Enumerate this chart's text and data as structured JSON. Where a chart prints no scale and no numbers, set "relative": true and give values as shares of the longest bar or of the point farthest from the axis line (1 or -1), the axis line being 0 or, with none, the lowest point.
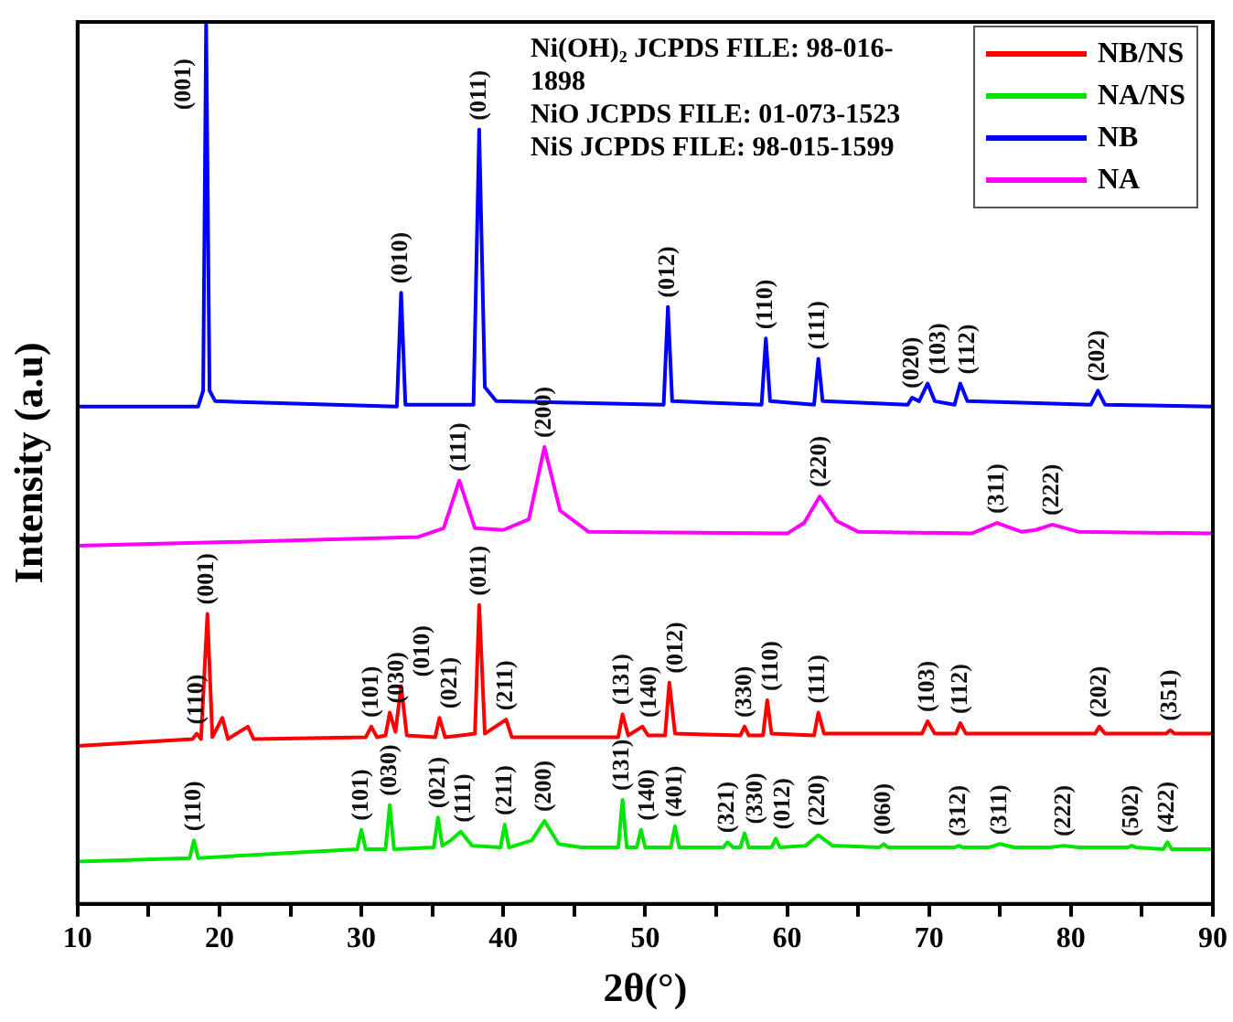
{
  "chart_data": {
    "type": "line",
    "relative": true,
    "xlabel": "2θ(°)",
    "ylabel": "Intensity (a.u)",
    "legend": "top right",
    "tick_labels": "x",
    "xlim": [
      10,
      90
    ],
    "xticks": [
      10,
      {
        "value": 15,
        "label": null
      },
      20,
      {
        "value": 25,
        "label": null
      },
      30,
      {
        "value": 35,
        "label": null
      },
      40,
      {
        "value": 45,
        "label": null
      },
      50,
      {
        "value": 55,
        "label": null
      },
      60,
      {
        "value": 65,
        "label": null
      },
      70,
      {
        "value": 75,
        "label": null
      },
      80,
      {
        "value": 85,
        "label": null
      },
      90
    ],
    "series": [
      {
        "name": "NB/NS",
        "color": "#ff0000",
        "x": [
          10,
          18.1,
          18.4,
          18.7,
          19.15,
          19.5,
          20.2,
          20.6,
          22.0,
          22.4,
          30.3,
          30.7,
          31.1,
          31.7,
          32.0,
          32.4,
          32.8,
          33.2,
          35.2,
          35.5,
          35.9,
          38.0,
          38.3,
          38.7,
          40.2,
          40.6,
          48.1,
          48.4,
          48.8,
          49.8,
          50.2,
          51.4,
          51.7,
          52.1,
          56.7,
          57.0,
          57.3,
          58.3,
          58.6,
          58.9,
          61.9,
          62.2,
          62.6,
          69.5,
          69.9,
          70.4,
          71.9,
          72.2,
          72.6,
          81.7,
          82.0,
          82.4,
          86.7,
          87.0,
          87.3,
          90
        ],
        "values": [
          0.179,
          0.187,
          0.193,
          0.187,
          0.329,
          0.189,
          0.211,
          0.187,
          0.201,
          0.187,
          0.189,
          0.201,
          0.189,
          0.191,
          0.217,
          0.195,
          0.247,
          0.191,
          0.189,
          0.211,
          0.189,
          0.193,
          0.339,
          0.193,
          0.209,
          0.189,
          0.189,
          0.215,
          0.191,
          0.201,
          0.191,
          0.191,
          0.251,
          0.193,
          0.191,
          0.201,
          0.191,
          0.191,
          0.231,
          0.193,
          0.191,
          0.217,
          0.193,
          0.193,
          0.207,
          0.193,
          0.193,
          0.205,
          0.193,
          0.193,
          0.201,
          0.193,
          0.193,
          0.197,
          0.193,
          0.193
        ]
      },
      {
        "name": "NA/NS",
        "color": "#00e600",
        "x": [
          10,
          17.9,
          18.2,
          18.5,
          29.7,
          30.0,
          30.3,
          31.7,
          32.0,
          32.3,
          35.1,
          35.4,
          35.7,
          36.3,
          37.0,
          37.8,
          39.8,
          40.1,
          40.4,
          42.0,
          42.9,
          43.9,
          45.5,
          48.1,
          48.4,
          48.7,
          49.4,
          49.7,
          50.0,
          51.8,
          52.1,
          52.4,
          55.5,
          55.8,
          56.2,
          56.7,
          57.0,
          57.3,
          58.9,
          59.2,
          59.5,
          61.3,
          62.2,
          63.2,
          66.5,
          66.8,
          67.1,
          71.8,
          72.1,
          72.4,
          74.2,
          75.0,
          76.0,
          78.5,
          79.5,
          80.5,
          84.0,
          84.3,
          84.6,
          86.5,
          86.8,
          87.1,
          90
        ],
        "values": [
          0.048,
          0.052,
          0.072,
          0.052,
          0.062,
          0.084,
          0.062,
          0.062,
          0.112,
          0.062,
          0.064,
          0.098,
          0.066,
          0.072,
          0.082,
          0.066,
          0.064,
          0.09,
          0.064,
          0.072,
          0.094,
          0.068,
          0.064,
          0.064,
          0.118,
          0.064,
          0.064,
          0.084,
          0.064,
          0.064,
          0.088,
          0.064,
          0.064,
          0.07,
          0.064,
          0.064,
          0.08,
          0.064,
          0.064,
          0.074,
          0.064,
          0.066,
          0.078,
          0.066,
          0.064,
          0.068,
          0.064,
          0.064,
          0.066,
          0.064,
          0.064,
          0.068,
          0.064,
          0.064,
          0.066,
          0.064,
          0.064,
          0.066,
          0.064,
          0.062,
          0.07,
          0.062,
          0.062
        ]
      },
      {
        "name": "NB",
        "color": "#0000ff",
        "x": [
          10,
          18.5,
          18.85,
          19.06,
          19.3,
          19.7,
          32.5,
          32.8,
          33.1,
          37.9,
          38.3,
          38.7,
          39.5,
          51.3,
          51.6,
          51.9,
          58.2,
          58.5,
          58.8,
          61.9,
          62.2,
          62.5,
          68.5,
          68.8,
          69.3,
          69.9,
          70.4,
          71.8,
          72.2,
          72.7,
          81.4,
          81.9,
          82.4,
          90
        ],
        "values": [
          0.564,
          0.564,
          0.582,
          1.0,
          0.582,
          0.57,
          0.564,
          0.693,
          0.566,
          0.566,
          0.878,
          0.586,
          0.57,
          0.566,
          0.677,
          0.57,
          0.566,
          0.641,
          0.57,
          0.566,
          0.618,
          0.57,
          0.566,
          0.574,
          0.57,
          0.59,
          0.57,
          0.566,
          0.59,
          0.57,
          0.566,
          0.582,
          0.566,
          0.564
        ]
      },
      {
        "name": "NA",
        "color": "#ff00ff",
        "x": [
          10,
          25,
          34,
          35.8,
          36.9,
          38,
          40,
          41.8,
          42.9,
          44,
          46,
          60,
          61.2,
          62.3,
          63.5,
          65,
          73,
          74.8,
          76.5,
          77.5,
          78.7,
          80.5,
          90
        ],
        "values": [
          0.406,
          0.412,
          0.416,
          0.426,
          0.48,
          0.426,
          0.424,
          0.436,
          0.518,
          0.446,
          0.422,
          0.42,
          0.432,
          0.462,
          0.434,
          0.422,
          0.42,
          0.432,
          0.422,
          0.424,
          0.43,
          0.422,
          0.42
        ]
      }
    ],
    "annotations": [
      "Ni(OH)₂ JCPDS FILE: 98-016-1898",
      "NiO JCPDS FILE: 01-073-1523",
      "NiS JCPDS FILE: 98-015-1599",
      {
        "text": "(001)",
        "x": 19.06,
        "y": 1.0
      },
      {
        "text": "(010)",
        "x": 32.8,
        "y": 0.693
      },
      {
        "text": "(011)",
        "x": 38.3,
        "y": 0.878
      },
      {
        "text": "(012)",
        "x": 51.6,
        "y": 0.677
      },
      {
        "text": "(110)",
        "x": 58.5,
        "y": 0.641
      },
      {
        "text": "(111)",
        "x": 62.2,
        "y": 0.618
      },
      {
        "text": "(020)",
        "x": 68.8,
        "y": 0.574
      },
      {
        "text": "(103)",
        "x": 69.9,
        "y": 0.59
      },
      {
        "text": "(112)",
        "x": 72.2,
        "y": 0.59
      },
      {
        "text": "(202)",
        "x": 81.9,
        "y": 0.582
      },
      {
        "text": "(111)",
        "x": 36.9,
        "y": 0.48
      },
      {
        "text": "(200)",
        "x": 42.9,
        "y": 0.518
      },
      {
        "text": "(220)",
        "x": 62.3,
        "y": 0.462
      },
      {
        "text": "(311)",
        "x": 74.8,
        "y": 0.432
      },
      {
        "text": "(222)",
        "x": 78.7,
        "y": 0.43
      },
      {
        "text": "(110)",
        "x": 18.4,
        "y": 0.193
      },
      {
        "text": "(001)",
        "x": 19.15,
        "y": 0.329
      },
      {
        "text": "(101)",
        "x": 30.7,
        "y": 0.201
      },
      {
        "text": "(030)",
        "x": 32.0,
        "y": 0.217
      },
      {
        "text": "(010)",
        "x": 32.8,
        "y": 0.247
      },
      {
        "text": "(021)",
        "x": 35.5,
        "y": 0.211
      },
      {
        "text": "(011)",
        "x": 38.3,
        "y": 0.339
      },
      {
        "text": "(211)",
        "x": 40.2,
        "y": 0.209
      },
      {
        "text": "(131)",
        "x": 48.4,
        "y": 0.215
      },
      {
        "text": "(140)",
        "x": 49.8,
        "y": 0.201
      },
      {
        "text": "(012)",
        "x": 51.7,
        "y": 0.251
      },
      {
        "text": "(330)",
        "x": 57.0,
        "y": 0.201
      },
      {
        "text": "(110)",
        "x": 58.6,
        "y": 0.231
      },
      {
        "text": "(111)",
        "x": 62.2,
        "y": 0.217
      },
      {
        "text": "(103)",
        "x": 69.9,
        "y": 0.207
      },
      {
        "text": "(112)",
        "x": 72.2,
        "y": 0.205
      },
      {
        "text": "(202)",
        "x": 82.0,
        "y": 0.201
      },
      {
        "text": "(351)",
        "x": 87.0,
        "y": 0.197
      },
      {
        "text": "(110)",
        "x": 18.2,
        "y": 0.072
      },
      {
        "text": "(101)",
        "x": 30.0,
        "y": 0.084
      },
      {
        "text": "(030)",
        "x": 32.0,
        "y": 0.112
      },
      {
        "text": "(021)",
        "x": 35.4,
        "y": 0.098
      },
      {
        "text": "(111)",
        "x": 37.0,
        "y": 0.082
      },
      {
        "text": "(211)",
        "x": 40.1,
        "y": 0.09
      },
      {
        "text": "(200)",
        "x": 42.9,
        "y": 0.094
      },
      {
        "text": "(131)",
        "x": 48.4,
        "y": 0.118
      },
      {
        "text": "(140)",
        "x": 49.7,
        "y": 0.084
      },
      {
        "text": "(401)",
        "x": 52.1,
        "y": 0.088
      },
      {
        "text": "(321)",
        "x": 55.8,
        "y": 0.07
      },
      {
        "text": "(330)",
        "x": 57.0,
        "y": 0.08
      },
      {
        "text": "(012)",
        "x": 59.2,
        "y": 0.074
      },
      {
        "text": "(220)",
        "x": 62.2,
        "y": 0.078
      },
      {
        "text": "(060)",
        "x": 66.8,
        "y": 0.068
      },
      {
        "text": "(312)",
        "x": 72.1,
        "y": 0.066
      },
      {
        "text": "(311)",
        "x": 75.0,
        "y": 0.068
      },
      {
        "text": "(222)",
        "x": 79.5,
        "y": 0.066
      },
      {
        "text": "(502)",
        "x": 84.3,
        "y": 0.066
      },
      {
        "text": "(422)",
        "x": 86.8,
        "y": 0.07
      }
    ]
  }
}
